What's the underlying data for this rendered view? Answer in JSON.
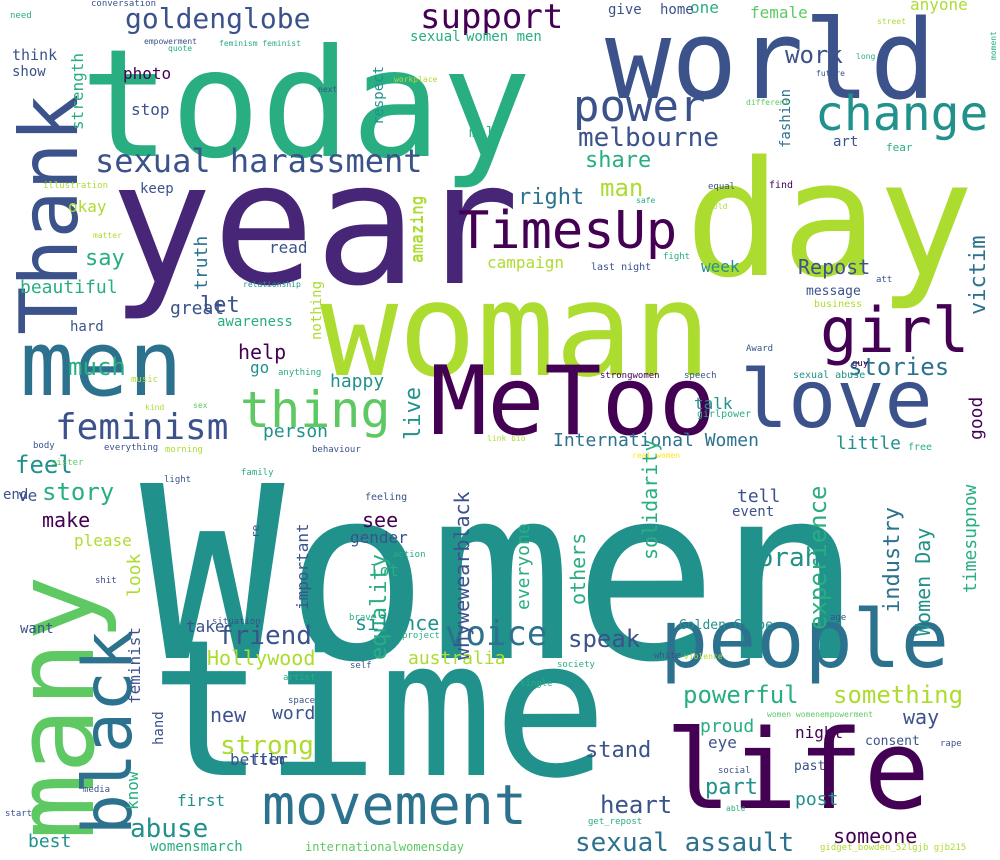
{
  "palette": {
    "background": "#ffffff",
    "dark_purple": "#440154",
    "purple": "#482677",
    "indigo": "#3b528b",
    "blue": "#2c728e",
    "teal": "#21918c",
    "green_teal": "#28ae80",
    "green": "#5ec962",
    "lime": "#addc30",
    "yellow": "#fde725"
  },
  "words": [
    "Women",
    "time",
    "woman",
    "year",
    "today",
    "day",
    "world",
    "life",
    "MeToo",
    "people",
    "many",
    "men",
    "Thank",
    "love",
    "movement",
    "black",
    "thing",
    "girl",
    "change",
    "power",
    "TimesUp",
    "sexual harassment",
    "feminism",
    "support",
    "goldenglobe",
    "voice",
    "melbourne",
    "stories",
    "sexual assault",
    "friend",
    "International Women",
    "oprah",
    "powerful",
    "something",
    "strong",
    "Hollywood",
    "whywewearblack",
    "equality",
    "experience",
    "industry",
    "timesupnow",
    "Women Day",
    "speak",
    "heart",
    "abuse",
    "feel",
    "story",
    "make",
    "share",
    "man",
    "right",
    "say",
    "Repost",
    "much",
    "see",
    "new",
    "word",
    "stand",
    "someone",
    "australia",
    "victim",
    "help",
    "work",
    "live",
    "silence",
    "others",
    "solidarity",
    "everyone",
    "great",
    "let",
    "happy",
    "person",
    "important",
    "gender",
    "lot",
    "good",
    "little",
    "tell",
    "part",
    "way",
    "proud",
    "night",
    "post",
    "look",
    "feminist",
    "know",
    "better",
    "first",
    "best",
    "womensmarch",
    "internationalwomensday",
    "gidget_bowden_52lgjb gjb215",
    "Golden Globe",
    "fashion",
    "art",
    "fear",
    "anyone",
    "female",
    "one",
    "home",
    "give",
    "women men",
    "sexual",
    "respect",
    "male",
    "photo",
    "stop",
    "strength",
    "show",
    "think",
    "need",
    "conversation",
    "empowerment",
    "feminism feminist",
    "quote",
    "next",
    "workplace",
    "different",
    "long",
    "future",
    "street",
    "moment",
    "okay",
    "beautiful",
    "truth",
    "read",
    "nothing",
    "amazing",
    "campaign",
    "week",
    "message",
    "awareness",
    "hard",
    "go",
    "talk",
    "end",
    "please",
    "take",
    "film",
    "hand",
    "event",
    "eye",
    "consent",
    "past",
    "amazing",
    "keep",
    "equal",
    "find",
    "safe",
    "old",
    "fight",
    "last night",
    "illustration",
    "matter",
    "relationship",
    "att",
    "business",
    "Award",
    "guy",
    "strongwomen",
    "speech",
    "sexual abuse",
    "music",
    "kind",
    "sex",
    "anything",
    "link bio",
    "girlpower",
    "body",
    "everything",
    "morning",
    "behaviour",
    "free",
    "sister",
    "light",
    "family",
    "feeling",
    "re",
    "action",
    "ve",
    "shit",
    "situation",
    "brave",
    "violence",
    "age",
    "project",
    "society",
    "white",
    "self",
    "single",
    "artist",
    "space",
    "women womenempowerment",
    "social",
    "able",
    "rape",
    "media",
    "start",
    "get_repost",
    "real women",
    "want"
  ]
}
